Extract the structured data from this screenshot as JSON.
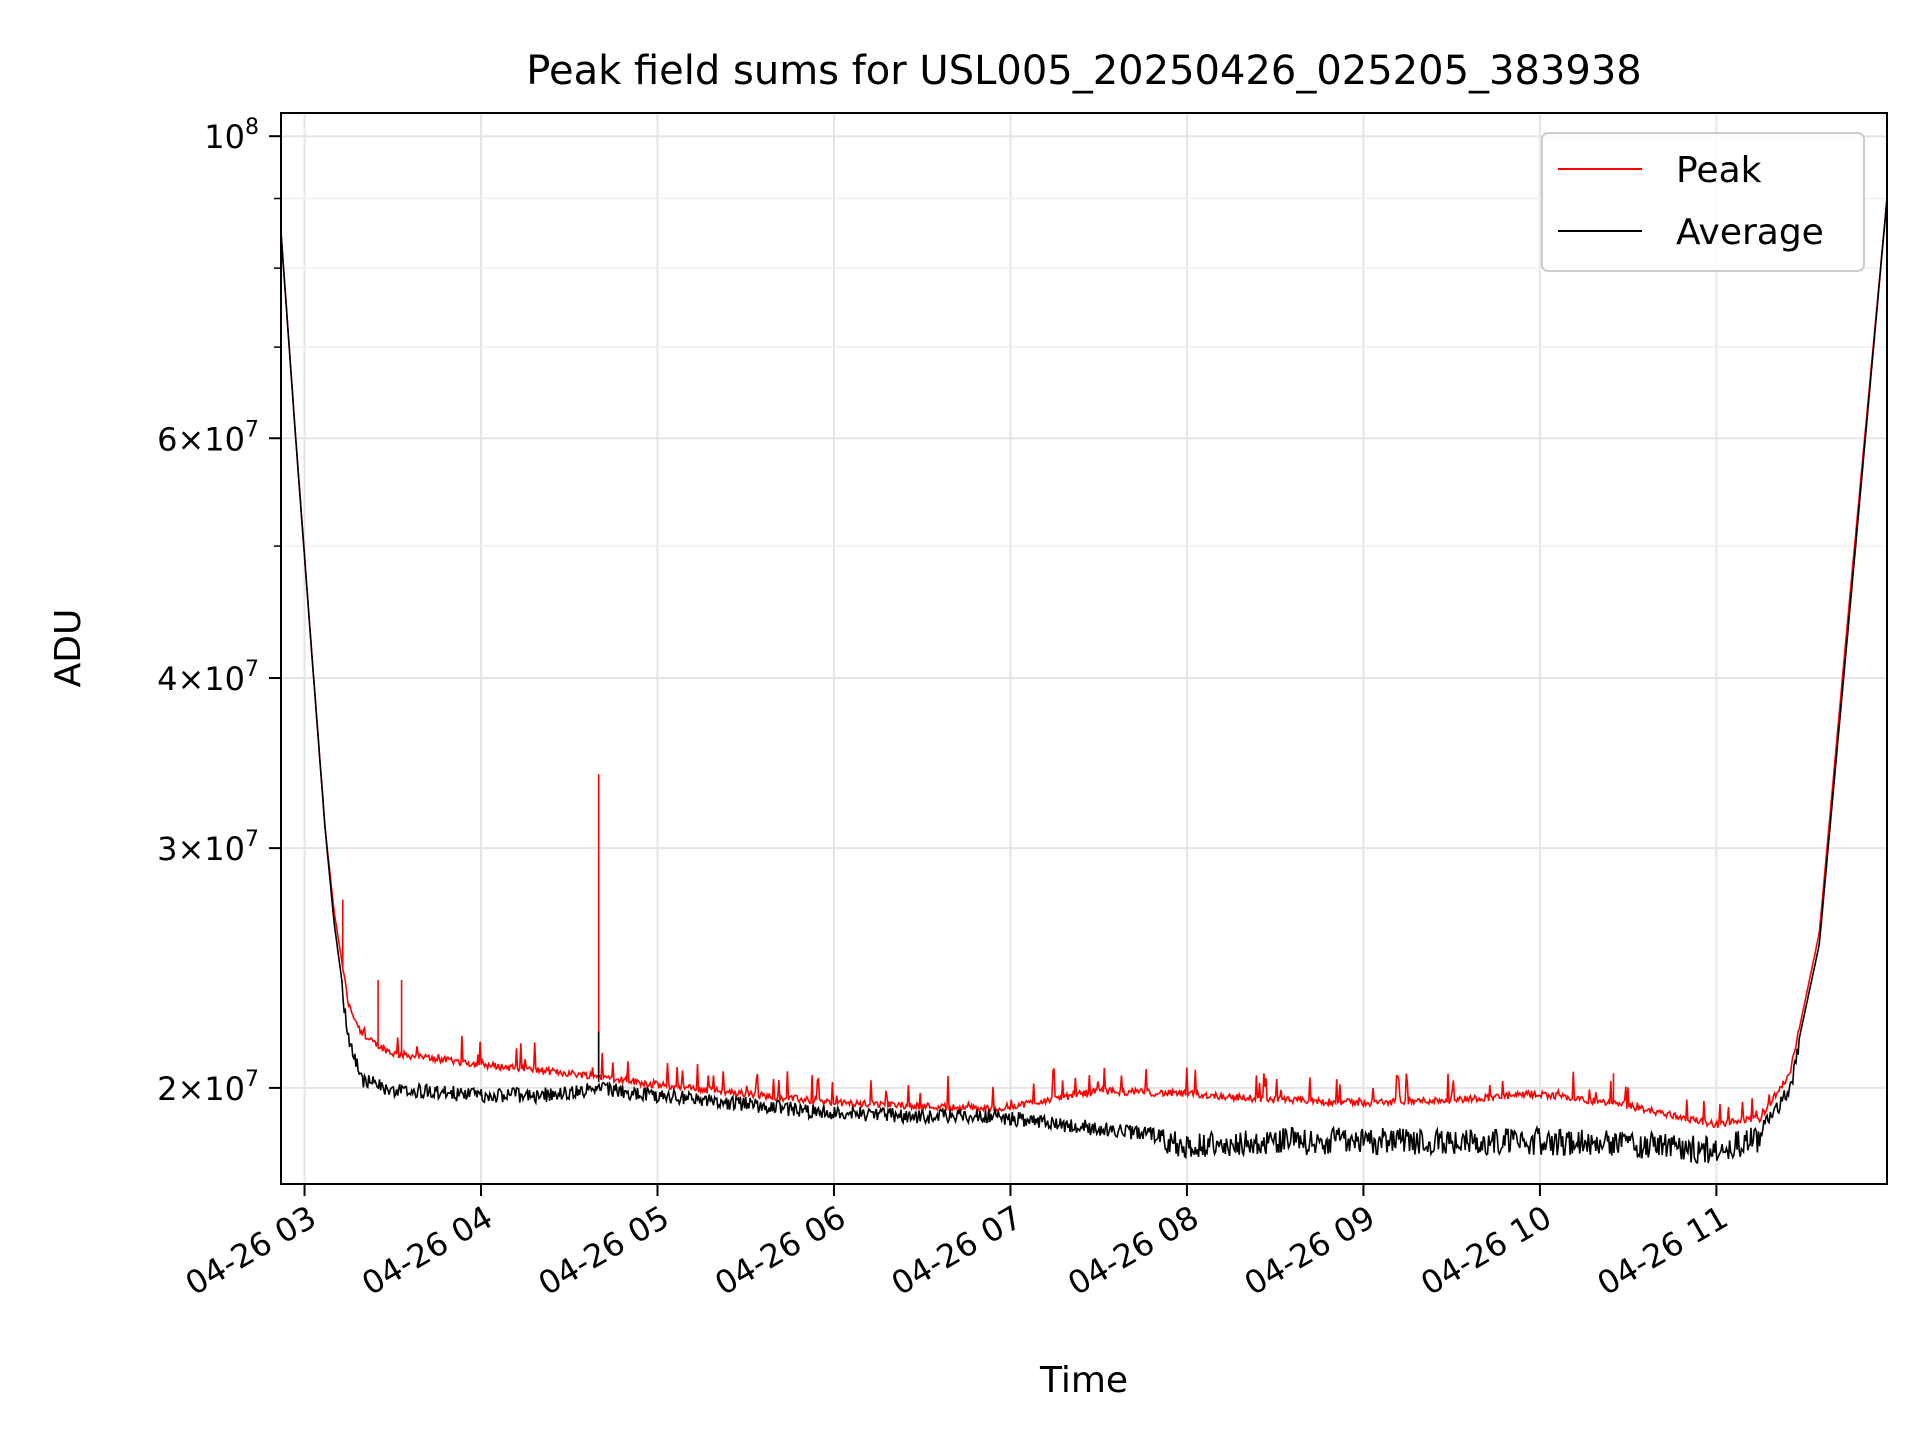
{
  "chart_data": {
    "type": "line",
    "title": "Peak field sums for USL005_20250426_025205_383938",
    "xlabel": "Time",
    "ylabel": "ADU",
    "y_scale": "log",
    "ylim": [
      17000000,
      104000000
    ],
    "xlim": [
      "2025-04-26 02:52",
      "2025-04-26 11:58"
    ],
    "grid": true,
    "legend": {
      "placement": "top-right",
      "entries": [
        "Peak",
        "Average"
      ]
    },
    "x_ticks": [
      {
        "time": "2025-04-26 03:00",
        "label": "04-26 03"
      },
      {
        "time": "2025-04-26 04:00",
        "label": "04-26 04"
      },
      {
        "time": "2025-04-26 05:00",
        "label": "04-26 05"
      },
      {
        "time": "2025-04-26 06:00",
        "label": "04-26 06"
      },
      {
        "time": "2025-04-26 07:00",
        "label": "04-26 07"
      },
      {
        "time": "2025-04-26 08:00",
        "label": "04-26 08"
      },
      {
        "time": "2025-04-26 09:00",
        "label": "04-26 09"
      },
      {
        "time": "2025-04-26 10:00",
        "label": "04-26 10"
      },
      {
        "time": "2025-04-26 11:00",
        "label": "04-26 11"
      }
    ],
    "y_ticks": [
      {
        "value": 20000000,
        "mantissa": "2",
        "exponent": "7"
      },
      {
        "value": 30000000,
        "mantissa": "3",
        "exponent": "7"
      },
      {
        "value": 40000000,
        "mantissa": "4",
        "exponent": "7"
      },
      {
        "value": 60000000,
        "mantissa": "6",
        "exponent": "7"
      },
      {
        "value": 100000000,
        "mantissa": "10",
        "exponent": "8"
      }
    ],
    "y_minor_ticks": [
      50000000,
      70000000,
      80000000,
      90000000
    ],
    "series": [
      {
        "name": "Peak",
        "color": "#ff0000",
        "x": [
          "2025-04-26 02:52",
          "2025-04-26 02:57",
          "2025-04-26 03:02",
          "2025-04-26 03:07",
          "2025-04-26 03:10",
          "2025-04-26 03:15",
          "2025-04-26 03:20",
          "2025-04-26 03:30",
          "2025-04-26 03:45",
          "2025-04-26 04:00",
          "2025-04-26 04:20",
          "2025-04-26 04:40",
          "2025-04-26 05:00",
          "2025-04-26 05:30",
          "2025-04-26 06:00",
          "2025-04-26 06:30",
          "2025-04-26 06:55",
          "2025-04-26 07:30",
          "2025-04-26 08:00",
          "2025-04-26 08:30",
          "2025-04-26 09:00",
          "2025-04-26 09:30",
          "2025-04-26 10:00",
          "2025-04-26 10:30",
          "2025-04-26 11:00",
          "2025-04-26 11:15",
          "2025-04-26 11:25",
          "2025-04-26 11:35",
          "2025-04-26 11:45",
          "2025-04-26 11:58"
        ],
        "values": [
          85000000,
          60000000,
          43000000,
          31000000,
          27000000,
          23000000,
          21800000,
          21200000,
          21000000,
          20800000,
          20600000,
          20400000,
          20100000,
          19800000,
          19500000,
          19400000,
          19300000,
          19900000,
          19800000,
          19600000,
          19500000,
          19600000,
          19800000,
          19400000,
          18800000,
          19000000,
          20500000,
          26000000,
          45000000,
          90000000
        ]
      },
      {
        "name": "Average",
        "color": "#000000",
        "x": [
          "2025-04-26 02:52",
          "2025-04-26 02:57",
          "2025-04-26 03:02",
          "2025-04-26 03:07",
          "2025-04-26 03:10",
          "2025-04-26 03:15",
          "2025-04-26 03:20",
          "2025-04-26 03:30",
          "2025-04-26 03:45",
          "2025-04-26 04:00",
          "2025-04-26 04:20",
          "2025-04-26 04:40",
          "2025-04-26 05:00",
          "2025-04-26 05:30",
          "2025-04-26 06:00",
          "2025-04-26 06:30",
          "2025-04-26 06:55",
          "2025-04-26 07:30",
          "2025-04-26 08:00",
          "2025-04-26 08:30",
          "2025-04-26 09:00",
          "2025-04-26 09:30",
          "2025-04-26 10:00",
          "2025-04-26 10:30",
          "2025-04-26 11:00",
          "2025-04-26 11:15",
          "2025-04-26 11:25",
          "2025-04-26 11:35",
          "2025-04-26 11:45",
          "2025-04-26 11:58"
        ],
        "values": [
          85000000,
          60000000,
          43000000,
          31000000,
          26500000,
          22000000,
          20500000,
          20200000,
          20100000,
          20000000,
          20000000,
          20200000,
          20000000,
          19700000,
          19400000,
          19300000,
          19300000,
          18900000,
          18600000,
          18700000,
          18700000,
          18700000,
          18700000,
          18600000,
          18400000,
          18800000,
          20200000,
          25500000,
          44000000,
          90000000
        ]
      }
    ],
    "annotations": [
      {
        "series": "Peak",
        "time": "2025-04-26 04:40",
        "value": 34000000
      },
      {
        "series": "Average",
        "time": "2025-04-26 04:40",
        "value": 22000000
      },
      {
        "series": "Peak",
        "time": "2025-04-26 03:13",
        "value": 27500000
      },
      {
        "series": "Peak",
        "time": "2025-04-26 03:33",
        "value": 24000000
      },
      {
        "series": "Peak",
        "time": "2025-04-26 03:25",
        "value": 24000000
      },
      {
        "series": "Peak",
        "time": "2025-04-26 10:25",
        "value": 20500000
      }
    ]
  }
}
